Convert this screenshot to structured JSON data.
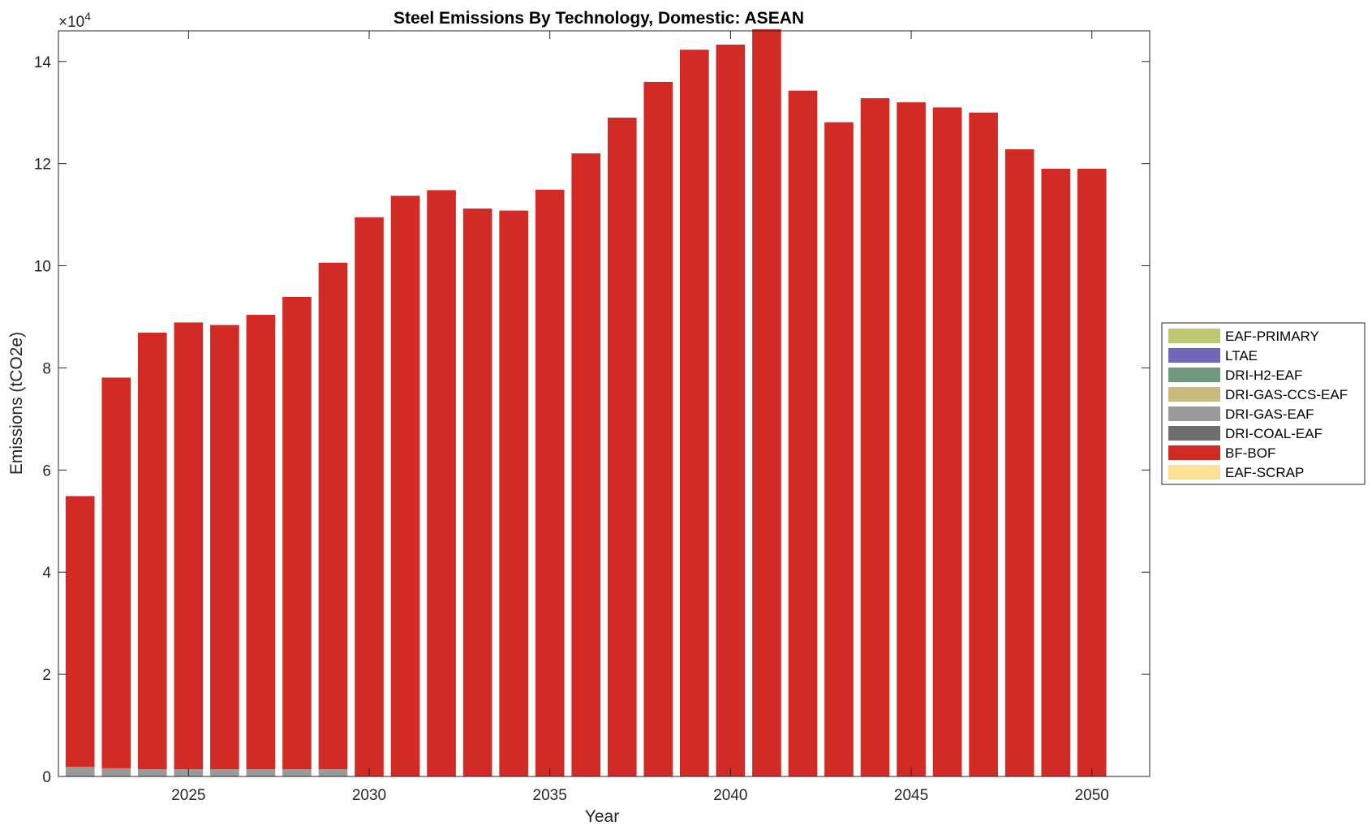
{
  "chart_data": {
    "type": "bar",
    "stacked": true,
    "title": "Steel Emissions By Technology, Domestic: ASEAN",
    "xlabel": "Year",
    "ylabel": "Emissions (tCO2e)",
    "y_exponent_label": "×10",
    "y_exponent_power": "4",
    "xlim": [
      2021.4,
      2051.6
    ],
    "ylim": [
      0,
      14.6
    ],
    "x_ticks": [
      2025,
      2030,
      2035,
      2040,
      2045,
      2050
    ],
    "x_tick_labels": [
      "2025",
      "2030",
      "2035",
      "2040",
      "2045",
      "2050"
    ],
    "y_ticks": [
      0,
      2,
      4,
      6,
      8,
      10,
      12,
      14
    ],
    "y_tick_labels": [
      "0",
      "2",
      "4",
      "6",
      "8",
      "10",
      "12",
      "14"
    ],
    "grid": false,
    "legend_position": "right-outside",
    "x": [
      2022,
      2023,
      2024,
      2025,
      2026,
      2027,
      2028,
      2029,
      2030,
      2031,
      2032,
      2033,
      2034,
      2035,
      2036,
      2037,
      2038,
      2039,
      2040,
      2041,
      2042,
      2043,
      2044,
      2045,
      2046,
      2047,
      2048,
      2049,
      2050
    ],
    "series": [
      {
        "name": "EAF-PRIMARY",
        "color": "#bdc870",
        "values": [
          0,
          0,
          0,
          0,
          0,
          0,
          0,
          0,
          0,
          0,
          0,
          0,
          0,
          0,
          0,
          0,
          0,
          0,
          0,
          0,
          0,
          0,
          0,
          0,
          0,
          0,
          0,
          0,
          0
        ]
      },
      {
        "name": "LTAE",
        "color": "#6f68b7",
        "values": [
          0,
          0,
          0,
          0,
          0,
          0,
          0,
          0,
          0,
          0,
          0,
          0,
          0,
          0,
          0,
          0,
          0,
          0,
          0,
          0,
          0,
          0,
          0,
          0,
          0,
          0,
          0,
          0,
          0
        ]
      },
      {
        "name": "DRI-H2-EAF",
        "color": "#749780",
        "values": [
          0,
          0,
          0,
          0,
          0,
          0,
          0,
          0,
          0,
          0,
          0,
          0,
          0,
          0,
          0,
          0,
          0,
          0,
          0,
          0,
          0,
          0,
          0,
          0,
          0,
          0,
          0,
          0,
          0
        ]
      },
      {
        "name": "DRI-GAS-CCS-EAF",
        "color": "#c8bb7c",
        "values": [
          0,
          0,
          0,
          0,
          0,
          0,
          0,
          0,
          0,
          0,
          0,
          0,
          0,
          0,
          0,
          0,
          0,
          0,
          0,
          0,
          0,
          0,
          0,
          0,
          0,
          0,
          0,
          0,
          0
        ]
      },
      {
        "name": "DRI-GAS-EAF",
        "color": "#9a9a9a",
        "values": [
          0.19,
          0.16,
          0.14,
          0.14,
          0.14,
          0.14,
          0.14,
          0.14,
          0,
          0,
          0,
          0,
          0,
          0,
          0,
          0,
          0,
          0,
          0,
          0,
          0,
          0,
          0,
          0,
          0,
          0,
          0,
          0,
          0
        ]
      },
      {
        "name": "DRI-COAL-EAF",
        "color": "#6e6e6e",
        "values": [
          0,
          0,
          0,
          0,
          0,
          0,
          0,
          0,
          0,
          0,
          0,
          0,
          0,
          0,
          0,
          0,
          0,
          0,
          0,
          0,
          0,
          0,
          0,
          0,
          0,
          0,
          0,
          0,
          0
        ]
      },
      {
        "name": "BF-BOF",
        "color": "#d22a25",
        "values": [
          5.3,
          7.65,
          8.55,
          8.75,
          8.7,
          8.9,
          9.25,
          9.92,
          10.95,
          11.37,
          11.48,
          11.12,
          11.08,
          11.49,
          12.2,
          12.9,
          13.6,
          14.23,
          14.33,
          14.63,
          13.43,
          12.81,
          13.28,
          13.2,
          13.1,
          13.0,
          12.28,
          11.9,
          11.9
        ]
      },
      {
        "name": "EAF-SCRAP",
        "color": "#fbe095",
        "values": [
          0,
          0,
          0,
          0,
          0,
          0,
          0,
          0,
          0,
          0,
          0,
          0,
          0,
          0,
          0,
          0,
          0,
          0,
          0,
          0,
          0,
          0,
          0,
          0,
          0,
          0,
          0,
          0,
          0
        ]
      }
    ]
  }
}
